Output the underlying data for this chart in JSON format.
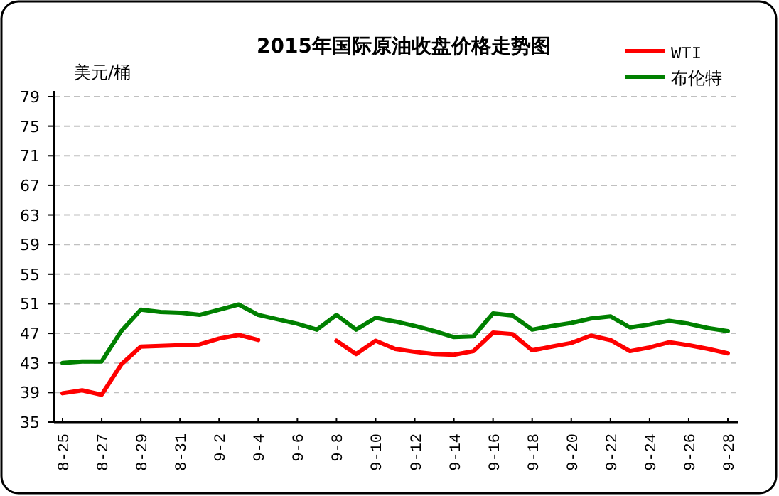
{
  "chart_data": {
    "type": "line",
    "title": "2015年国际原油收盘价格走势图",
    "ylabel": "美元/桶",
    "categories": [
      "8-25",
      null,
      "8-27",
      null,
      "8-29",
      null,
      "8-31",
      null,
      "9-2",
      null,
      "9-4",
      null,
      "9-6",
      null,
      "9-8",
      null,
      "9-10",
      null,
      "9-12",
      null,
      "9-14",
      null,
      "9-16",
      null,
      "9-18",
      null,
      "9-20",
      null,
      "9-22",
      null,
      "9-24",
      null,
      "9-26",
      null,
      "9-28"
    ],
    "series": [
      {
        "name": "WTI",
        "color": "#ff0000",
        "values": [
          38.9,
          39.3,
          38.7,
          42.8,
          45.2,
          45.3,
          45.4,
          45.5,
          46.3,
          46.8,
          46.1,
          null,
          null,
          null,
          46.0,
          44.2,
          46.0,
          44.9,
          44.5,
          44.2,
          44.1,
          44.6,
          47.1,
          46.9,
          44.7,
          45.2,
          45.7,
          46.7,
          46.1,
          44.6,
          45.1,
          45.8,
          45.4,
          44.9,
          44.3
        ]
      },
      {
        "name": "布伦特",
        "color": "#008000",
        "values": [
          43.0,
          43.2,
          43.2,
          47.3,
          50.2,
          49.9,
          49.8,
          49.5,
          50.2,
          50.9,
          49.5,
          48.9,
          48.3,
          47.5,
          49.5,
          47.5,
          49.1,
          48.6,
          48.0,
          47.3,
          46.5,
          46.6,
          49.7,
          49.4,
          47.5,
          48.0,
          48.4,
          49.0,
          49.3,
          47.8,
          48.2,
          48.7,
          48.3,
          47.7,
          47.3
        ]
      }
    ],
    "ylim": [
      35,
      79
    ],
    "yticks": [
      35,
      39,
      43,
      47,
      51,
      55,
      59,
      63,
      67,
      71,
      75,
      79
    ],
    "grid": "y",
    "legend": "top right",
    "marker": "none",
    "line_style": "solid"
  }
}
